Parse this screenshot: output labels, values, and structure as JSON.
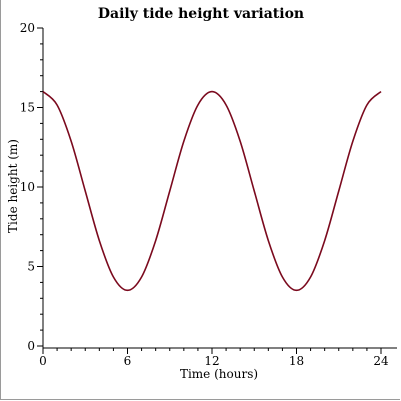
{
  "chart_data": {
    "type": "line",
    "title": "Daily tide height variation",
    "xlabel": "Time (hours)",
    "ylabel": "Tide height (m)",
    "xlim": [
      0,
      24
    ],
    "ylim": [
      0,
      20
    ],
    "xticks": [
      0,
      6,
      12,
      18,
      24
    ],
    "yticks": [
      0,
      5,
      10,
      15,
      20
    ],
    "grid": false,
    "series": [
      {
        "color": "#7b0a1e",
        "x": [
          0,
          1,
          2,
          3,
          4,
          5,
          6,
          7,
          8,
          9,
          10,
          11,
          12,
          13,
          14,
          15,
          16,
          17,
          18,
          19,
          20,
          21,
          22,
          23,
          24
        ],
        "y": [
          16.0,
          15.16,
          12.88,
          9.75,
          6.63,
          4.34,
          3.5,
          4.34,
          6.63,
          9.75,
          12.88,
          15.16,
          16.0,
          15.16,
          12.88,
          9.75,
          6.63,
          4.34,
          3.5,
          4.34,
          6.63,
          9.75,
          12.88,
          15.16,
          16.0
        ]
      }
    ]
  }
}
